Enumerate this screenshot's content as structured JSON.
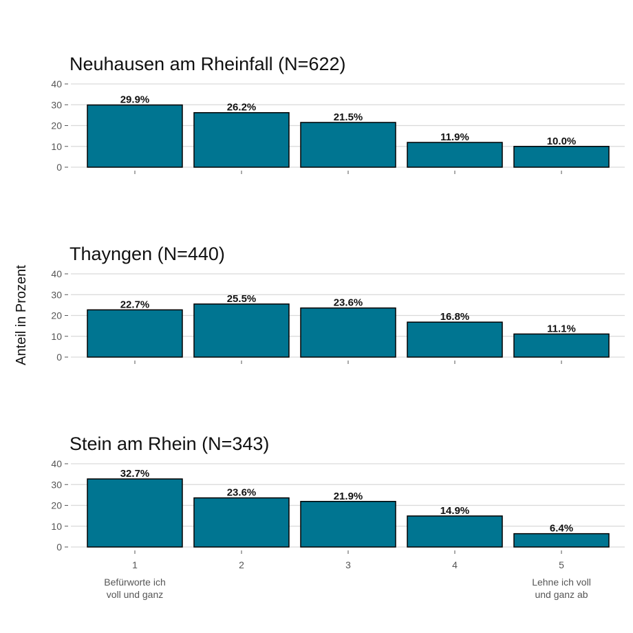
{
  "chart_data": {
    "type": "bar",
    "ylabel": "Anteil in Prozent",
    "ylim": [
      0,
      40
    ],
    "yticks": [
      0,
      10,
      20,
      30,
      40
    ],
    "categories": [
      "1",
      "2",
      "3",
      "4",
      "5"
    ],
    "category_descriptions": {
      "1": [
        "Befürworte ich",
        "voll und ganz"
      ],
      "5": [
        "Lehne ich voll",
        "und ganz ab"
      ]
    },
    "bar_color": "#007591",
    "grid": true,
    "panels": [
      {
        "title": "Neuhausen am Rheinfall (N=622)",
        "values": [
          29.9,
          26.2,
          21.5,
          11.9,
          10.0
        ],
        "labels": [
          "29.9%",
          "26.2%",
          "21.5%",
          "11.9%",
          "10.0%"
        ]
      },
      {
        "title": "Thayngen (N=440)",
        "values": [
          22.7,
          25.5,
          23.6,
          16.8,
          11.1
        ],
        "labels": [
          "22.7%",
          "25.5%",
          "23.6%",
          "16.8%",
          "11.1%"
        ]
      },
      {
        "title": "Stein am Rhein (N=343)",
        "values": [
          32.7,
          23.6,
          21.9,
          14.9,
          6.4
        ],
        "labels": [
          "32.7%",
          "23.6%",
          "21.9%",
          "14.9%",
          "6.4%"
        ]
      }
    ]
  }
}
